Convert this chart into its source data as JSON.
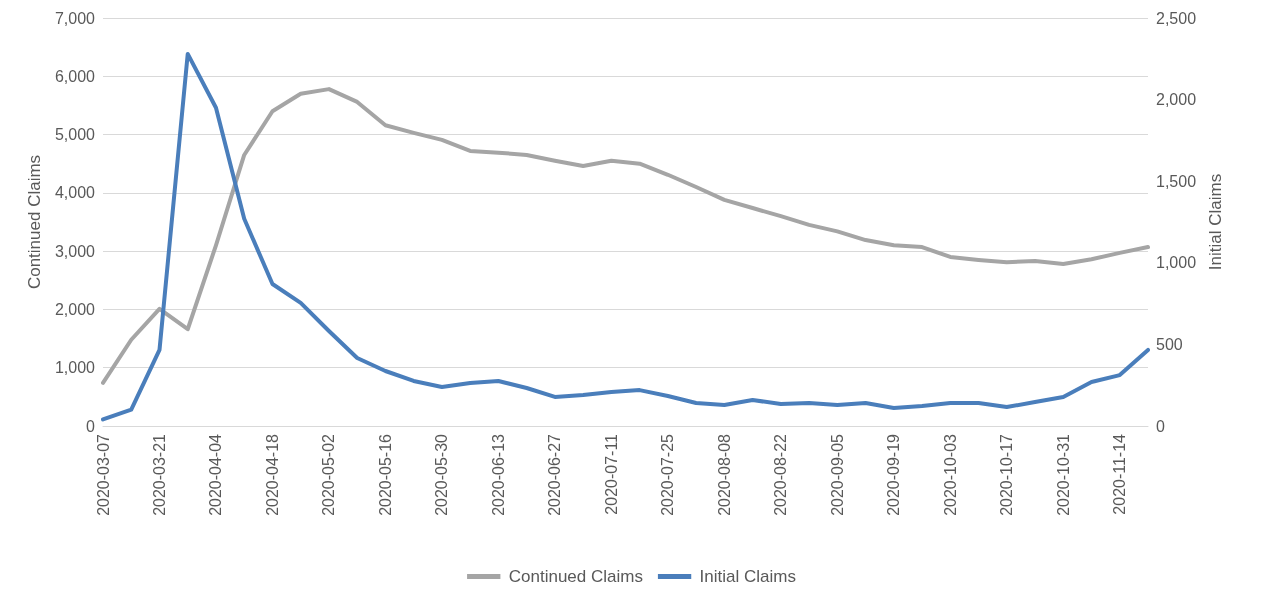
{
  "chart_data": {
    "type": "line",
    "categories": [
      "2020-03-07",
      null,
      "2020-03-21",
      null,
      "2020-04-04",
      null,
      "2020-04-18",
      null,
      "2020-05-02",
      null,
      "2020-05-16",
      null,
      "2020-05-30",
      null,
      "2020-06-13",
      null,
      "2020-06-27",
      null,
      "2020-07-11",
      null,
      "2020-07-25",
      null,
      "2020-08-08",
      null,
      "2020-08-22",
      null,
      "2020-09-05",
      null,
      "2020-09-19",
      null,
      "2020-10-03",
      null,
      "2020-10-17",
      null,
      "2020-10-31",
      null,
      "2020-11-14",
      null
    ],
    "series": [
      {
        "name": "Continued Claims",
        "color": "#a5a5a5",
        "values": [
          740,
          1480,
          2010,
          1660,
          3100,
          4650,
          5400,
          5700,
          5780,
          5560,
          5160,
          5030,
          4910,
          4720,
          4690,
          4650,
          4550,
          4460,
          4550,
          4500,
          4310,
          4100,
          3880,
          3740,
          3600,
          3450,
          3340,
          3190,
          3100,
          3070,
          2900,
          2850,
          2810,
          2830,
          2780,
          2860,
          2970,
          3070
        ]
      },
      {
        "name": "Initial Claims",
        "color": "#4a7ebb",
        "axis": "y2",
        "values": [
          40,
          100,
          466,
          2280,
          1950,
          1270,
          870,
          754,
          582,
          417,
          337,
          276,
          239,
          263,
          276,
          233,
          178,
          190,
          208,
          220,
          184,
          141,
          129,
          159,
          135,
          141,
          129,
          141,
          110,
          123,
          141,
          141,
          116,
          147,
          178,
          270,
          312,
          466
        ]
      }
    ],
    "ylabel": "Continued Claims",
    "y2label": "Initial Claims",
    "ylim": [
      0,
      7000
    ],
    "yticks": [
      0,
      {
        "value": 1000,
        "label": "1,000"
      },
      {
        "value": 2000,
        "label": "2,000"
      },
      {
        "value": 3000,
        "label": "3,000"
      },
      {
        "value": 4000,
        "label": "4,000"
      },
      {
        "value": 5000,
        "label": "5,000"
      },
      {
        "value": 6000,
        "label": "6,000"
      },
      {
        "value": 7000,
        "label": "7,000"
      }
    ],
    "y2lim": [
      0,
      2500
    ],
    "y2ticks": [
      0,
      500,
      {
        "value": 1000,
        "label": "1,000"
      },
      {
        "value": 1500,
        "label": "1,500"
      },
      {
        "value": 2000,
        "label": "2,000"
      },
      {
        "value": 2500,
        "label": "2,500"
      }
    ],
    "grid": "y",
    "legend": "bottom",
    "marker": "none",
    "line_style": "solid"
  }
}
